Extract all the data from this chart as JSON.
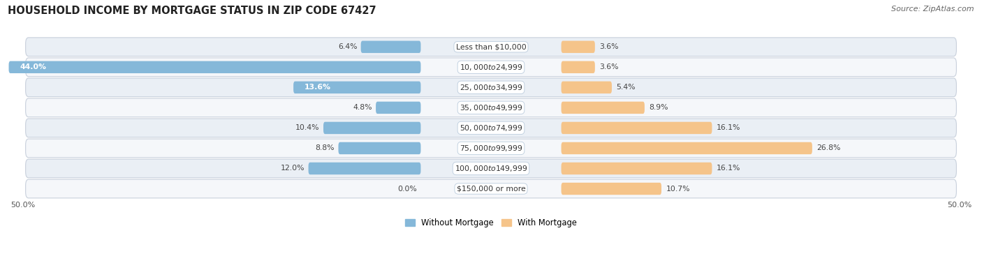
{
  "title": "HOUSEHOLD INCOME BY MORTGAGE STATUS IN ZIP CODE 67427",
  "source": "Source: ZipAtlas.com",
  "categories": [
    "Less than $10,000",
    "$10,000 to $24,999",
    "$25,000 to $34,999",
    "$35,000 to $49,999",
    "$50,000 to $74,999",
    "$75,000 to $99,999",
    "$100,000 to $149,999",
    "$150,000 or more"
  ],
  "without_mortgage": [
    6.4,
    44.0,
    13.6,
    4.8,
    10.4,
    8.8,
    12.0,
    0.0
  ],
  "with_mortgage": [
    3.6,
    3.6,
    5.4,
    8.9,
    16.1,
    26.8,
    16.1,
    10.7
  ],
  "color_without": "#85B8D9",
  "color_without_dark": "#5A9CC5",
  "color_with": "#F5C48A",
  "color_with_dark": "#E8A855",
  "bg_row_light": "#EAEFF5",
  "bg_row_white": "#F5F7FA",
  "axis_limit": 50.0,
  "legend_labels": [
    "Without Mortgage",
    "With Mortgage"
  ],
  "title_fontsize": 10.5,
  "label_fontsize": 7.8,
  "tick_fontsize": 8,
  "source_fontsize": 8
}
